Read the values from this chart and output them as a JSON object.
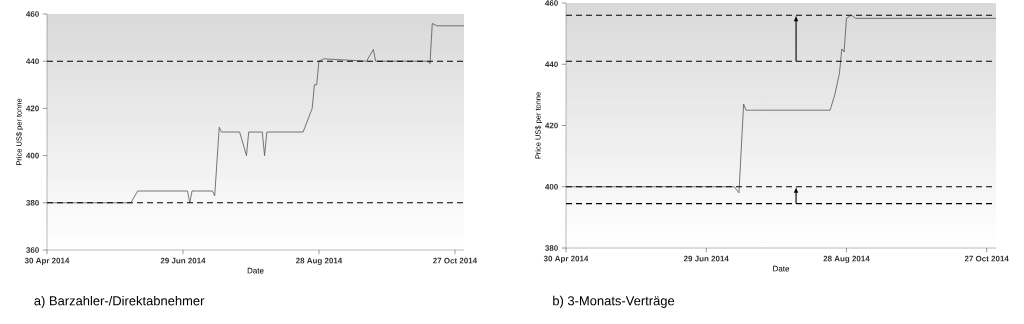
{
  "chart_data": [
    {
      "type": "line",
      "title": "a) Barzahler-/Direktabnehmer",
      "xlabel": "Date",
      "ylabel": "Price US$ per tonne",
      "x": [
        "2014-04-30",
        "2014-06-06",
        "2014-06-09",
        "2014-07-01",
        "2014-07-02",
        "2014-07-03",
        "2014-07-12",
        "2014-07-13",
        "2014-07-15",
        "2014-07-16",
        "2014-07-24",
        "2014-07-27",
        "2014-07-28",
        "2014-08-03",
        "2014-08-04",
        "2014-08-05",
        "2014-08-21",
        "2014-08-25",
        "2014-08-26",
        "2014-08-27",
        "2014-08-28",
        "2014-08-30",
        "2014-09-18",
        "2014-09-21",
        "2014-09-22",
        "2014-10-15",
        "2014-10-16",
        "2014-10-17",
        "2014-10-19",
        "2014-10-31"
      ],
      "series": [
        {
          "color": "#555555",
          "values": [
            380,
            380,
            385,
            385,
            380,
            385,
            385,
            383,
            412,
            410,
            410,
            400,
            410,
            410,
            400,
            410,
            410,
            420,
            430,
            430,
            440,
            441,
            440,
            445,
            440,
            440,
            439,
            456,
            455,
            455
          ]
        }
      ],
      "xlim": [
        "2014-04-30",
        "2014-10-31"
      ],
      "xticks": [
        {
          "value": "2014-04-30",
          "label": "30 Apr 2014"
        },
        {
          "value": "2014-06-29",
          "label": "29 Jun 2014"
        },
        {
          "value": "2014-08-28",
          "label": "28 Aug 2014"
        },
        {
          "value": "2014-10-27",
          "label": "27 Oct 2014"
        }
      ],
      "ylim": [
        360,
        460
      ],
      "yticks": [
        360,
        380,
        400,
        420,
        440,
        460
      ],
      "ref_lines": [
        {
          "axis": "y",
          "value": 380,
          "color": "#000000",
          "line_style": "dashed"
        },
        {
          "axis": "y",
          "value": 440,
          "color": "#000000",
          "line_style": "dashed"
        }
      ]
    },
    {
      "type": "line",
      "title": "b) 3-Monats-Verträge",
      "xlabel": "Date",
      "ylabel": "Price US$ per tonne",
      "x": [
        "2014-04-30",
        "2014-07-11",
        "2014-07-13",
        "2014-07-15",
        "2014-07-16",
        "2014-08-21",
        "2014-08-23",
        "2014-08-25",
        "2014-08-26",
        "2014-08-27",
        "2014-08-28",
        "2014-08-30",
        "2014-09-01",
        "2014-10-31"
      ],
      "series": [
        {
          "color": "#555555",
          "values": [
            400,
            400,
            398,
            427,
            425,
            425,
            430,
            437,
            445,
            444,
            455,
            456,
            455,
            455
          ]
        }
      ],
      "xlim": [
        "2014-04-30",
        "2014-10-31"
      ],
      "xticks": [
        {
          "value": "2014-04-30",
          "label": "30 Apr 2014"
        },
        {
          "value": "2014-06-29",
          "label": "29 Jun 2014"
        },
        {
          "value": "2014-08-28",
          "label": "28 Aug 2014"
        },
        {
          "value": "2014-10-27",
          "label": "27 Oct 2014"
        }
      ],
      "ylim": [
        380,
        460
      ],
      "yticks": [
        380,
        400,
        420,
        440,
        460
      ],
      "ref_lines": [
        {
          "axis": "y",
          "value": 394.5,
          "color": "#000000",
          "line_style": "dashed"
        },
        {
          "axis": "y",
          "value": 400,
          "color": "#000000",
          "line_style": "dashed"
        },
        {
          "axis": "y",
          "value": 441,
          "color": "#000000",
          "line_style": "dashed"
        },
        {
          "axis": "y",
          "value": 456,
          "color": "#000000",
          "line_style": "dashed"
        }
      ]
    }
  ]
}
